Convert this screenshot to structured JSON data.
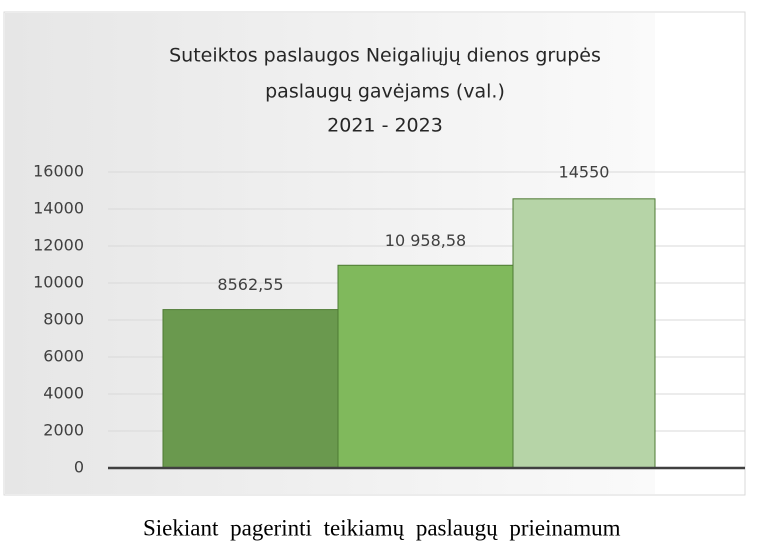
{
  "chart_data": {
    "type": "bar",
    "title": [
      "Suteiktos paslaugos Neigaliųjų dienos grupės",
      "paslaugų gavėjams (val.)",
      "2021 - 2023"
    ],
    "values": [
      8562.55,
      10958.58,
      14550
    ],
    "value_labels": [
      "8562,55",
      "10 958,58",
      "14550"
    ],
    "colors": [
      "#6a994e",
      "#80b95c",
      "#b6d4a7"
    ],
    "ylim": [
      0,
      16000
    ],
    "yticks": [
      0,
      2000,
      4000,
      6000,
      8000,
      10000,
      12000,
      14000,
      16000
    ],
    "grid": true
  },
  "paragraph": "Siekiant pagerinti teikiamų paslaugų prieinamum"
}
